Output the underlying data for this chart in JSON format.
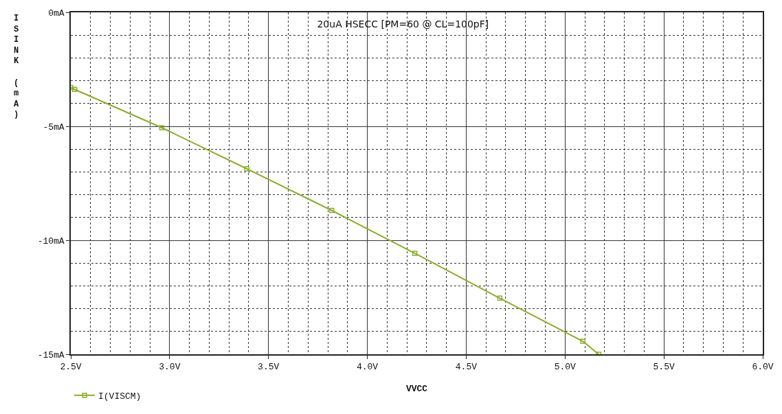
{
  "chart_data": {
    "type": "line",
    "title": "20uA HSECC [PM=60 @ CL=100pF]",
    "xlabel": "VVCC",
    "ylabel": "ISINK (mA)",
    "x": [
      2.5,
      2.52,
      2.96,
      3.39,
      3.82,
      4.24,
      4.67,
      5.09,
      5.17
    ],
    "series": [
      {
        "name": "I(VISCM)",
        "color": "#8aac2e",
        "values": [
          -3.3,
          -3.38,
          -5.06,
          -6.86,
          -8.69,
          -10.57,
          -12.54,
          -14.43,
          -15.0
        ]
      }
    ],
    "xlim": [
      2.5,
      6.0
    ],
    "ylim": [
      -15,
      0
    ],
    "xticks": [
      {
        "value": 2.5,
        "label": "2.5V"
      },
      {
        "value": 2.6,
        "label": null
      },
      {
        "value": 2.7,
        "label": null
      },
      {
        "value": 2.8,
        "label": null
      },
      {
        "value": 2.9,
        "label": null
      },
      {
        "value": 3.0,
        "label": "3.0V"
      },
      {
        "value": 3.1,
        "label": null
      },
      {
        "value": 3.2,
        "label": null
      },
      {
        "value": 3.3,
        "label": null
      },
      {
        "value": 3.4,
        "label": null
      },
      {
        "value": 3.5,
        "label": "3.5V"
      },
      {
        "value": 3.6,
        "label": null
      },
      {
        "value": 3.7,
        "label": null
      },
      {
        "value": 3.8,
        "label": null
      },
      {
        "value": 3.9,
        "label": null
      },
      {
        "value": 4.0,
        "label": "4.0V"
      },
      {
        "value": 4.1,
        "label": null
      },
      {
        "value": 4.2,
        "label": null
      },
      {
        "value": 4.3,
        "label": null
      },
      {
        "value": 4.4,
        "label": null
      },
      {
        "value": 4.5,
        "label": "4.5V"
      },
      {
        "value": 4.6,
        "label": null
      },
      {
        "value": 4.7,
        "label": null
      },
      {
        "value": 4.8,
        "label": null
      },
      {
        "value": 4.9,
        "label": null
      },
      {
        "value": 5.0,
        "label": "5.0V"
      },
      {
        "value": 5.1,
        "label": null
      },
      {
        "value": 5.2,
        "label": null
      },
      {
        "value": 5.3,
        "label": null
      },
      {
        "value": 5.4,
        "label": null
      },
      {
        "value": 5.5,
        "label": "5.5V"
      },
      {
        "value": 5.6,
        "label": null
      },
      {
        "value": 5.7,
        "label": null
      },
      {
        "value": 5.8,
        "label": null
      },
      {
        "value": 5.9,
        "label": null
      },
      {
        "value": 6.0,
        "label": "6.0V"
      }
    ],
    "yticks": [
      {
        "value": -15,
        "label": "-15mA"
      },
      {
        "value": -14,
        "label": null
      },
      {
        "value": -13,
        "label": null
      },
      {
        "value": -12,
        "label": null
      },
      {
        "value": -11,
        "label": null
      },
      {
        "value": -10,
        "label": "-10mA"
      },
      {
        "value": -9,
        "label": null
      },
      {
        "value": -8,
        "label": null
      },
      {
        "value": -7,
        "label": null
      },
      {
        "value": -6,
        "label": null
      },
      {
        "value": -5,
        "label": "-5mA"
      },
      {
        "value": -4,
        "label": null
      },
      {
        "value": -3,
        "label": null
      },
      {
        "value": -2,
        "label": null
      },
      {
        "value": -1,
        "label": null
      },
      {
        "value": 0,
        "label": "0mA"
      }
    ],
    "grid": true,
    "legend": "bottom left",
    "marker": "square",
    "line_style": "solid"
  }
}
